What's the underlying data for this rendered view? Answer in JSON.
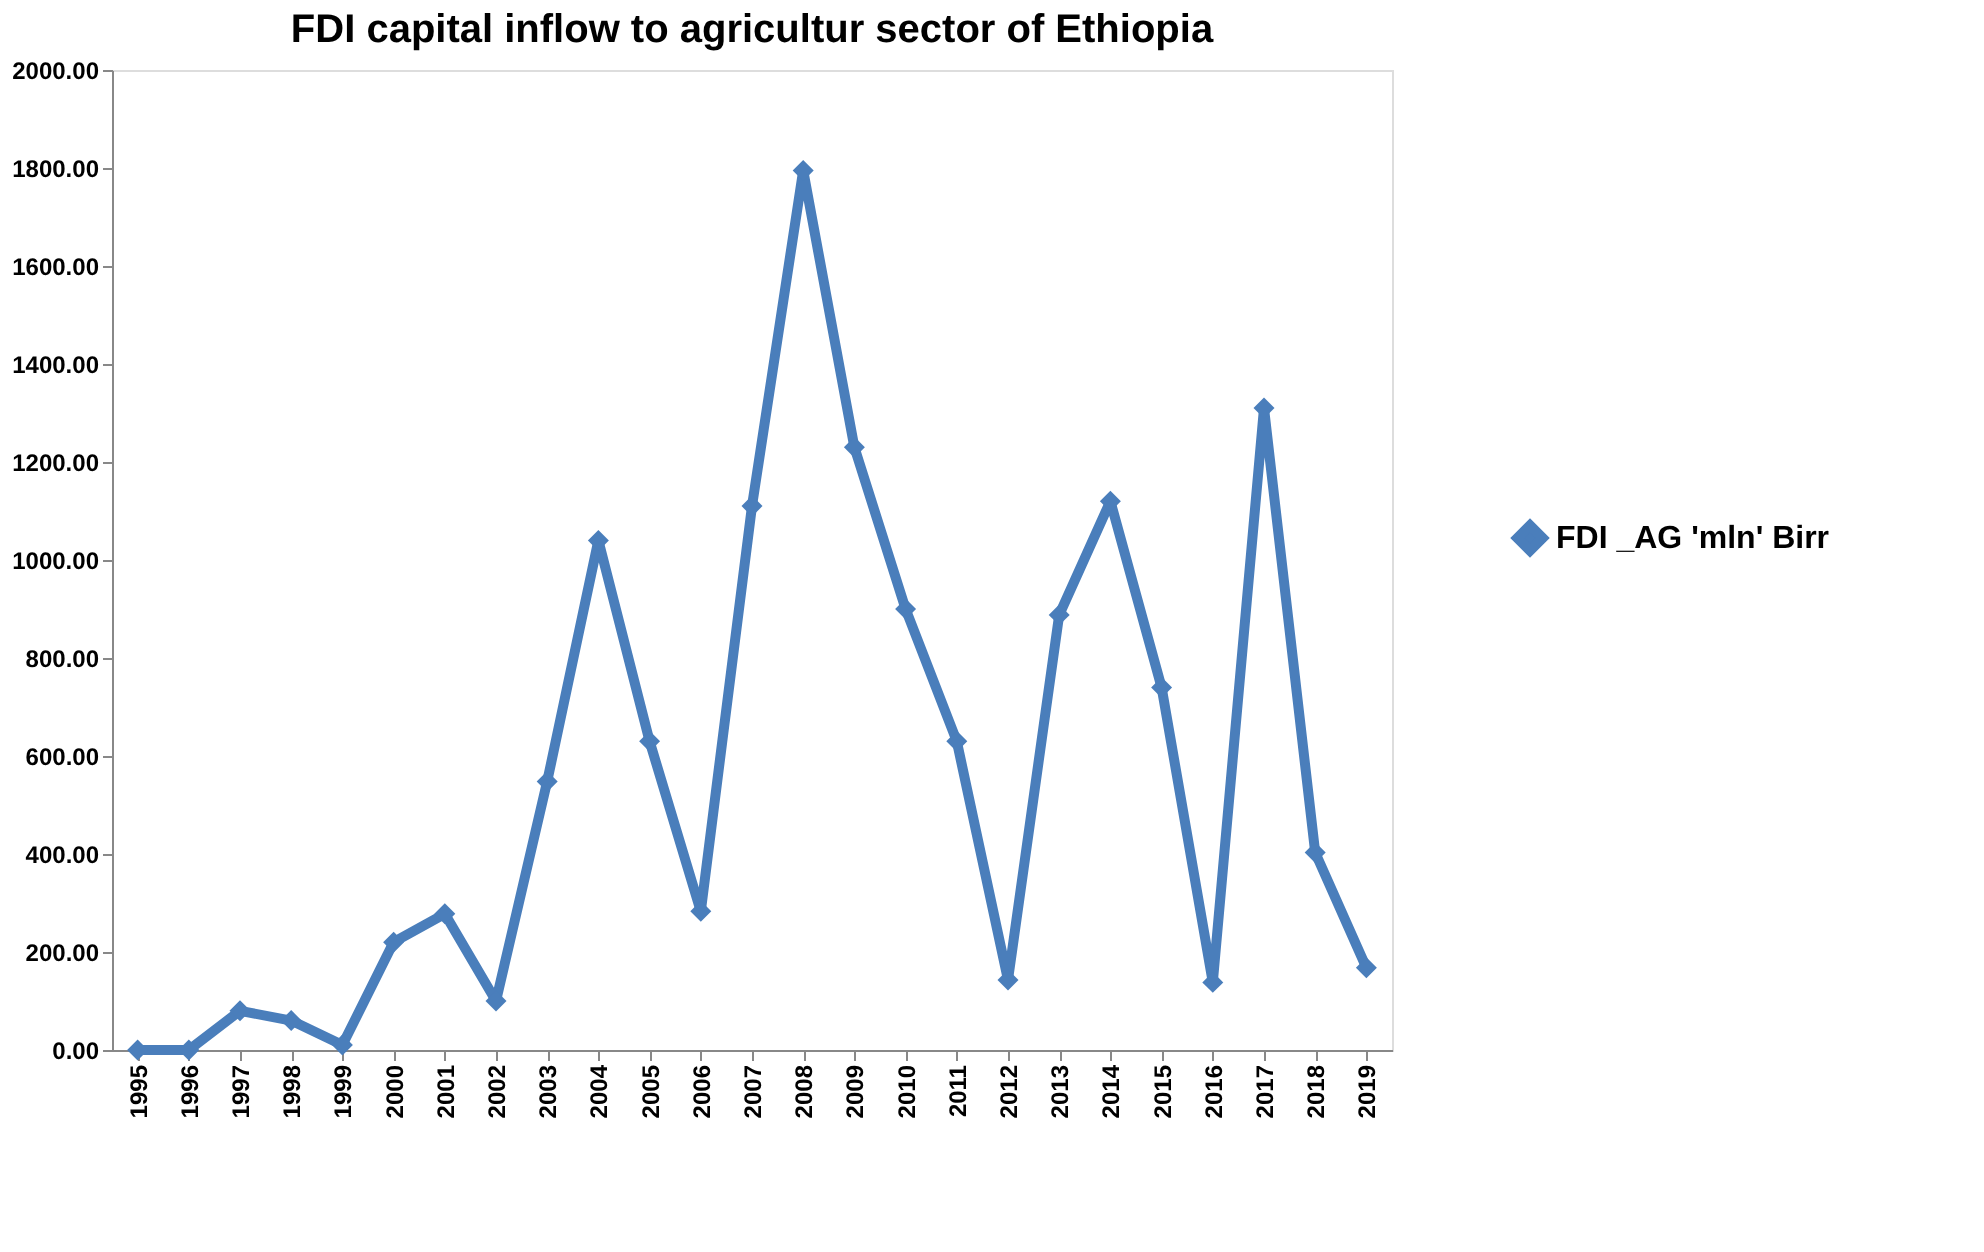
{
  "chart_data": {
    "type": "line",
    "title": "FDI capital inflow to agricultur sector of Ethiopia",
    "categories": [
      "1995",
      "1996",
      "1997",
      "1998",
      "1999",
      "2000",
      "2001",
      "2002",
      "2003",
      "2004",
      "2005",
      "2006",
      "2007",
      "2008",
      "2009",
      "2010",
      "2011",
      "2012",
      "2013",
      "2014",
      "2015",
      "2016",
      "2017",
      "2018",
      "2019"
    ],
    "series": [
      {
        "name": "FDI _AG 'mln' Birr",
        "color": "#4a7ebb",
        "values": [
          0,
          0,
          80,
          60,
          10,
          220,
          278,
          100,
          548,
          1040,
          630,
          283,
          1110,
          1795,
          1230,
          900,
          630,
          143,
          888,
          1120,
          740,
          138,
          1310,
          403,
          168
        ]
      }
    ],
    "ylim": [
      0,
      2000
    ],
    "yticks": [
      {
        "value": 0,
        "label": "0.00"
      },
      {
        "value": 200,
        "label": "200.00"
      },
      {
        "value": 400,
        "label": "400.00"
      },
      {
        "value": 600,
        "label": "600.00"
      },
      {
        "value": 800,
        "label": "800.00"
      },
      {
        "value": 1000,
        "label": "1000.00"
      },
      {
        "value": 1200,
        "label": "1200.00"
      },
      {
        "value": 1400,
        "label": "1400.00"
      },
      {
        "value": 1600,
        "label": "1600.00"
      },
      {
        "value": 1800,
        "label": "1800.00"
      },
      {
        "value": 2000,
        "label": "2000.00"
      }
    ],
    "grid": false,
    "legend": "right",
    "marker": "diamond",
    "line_style": "solid"
  }
}
